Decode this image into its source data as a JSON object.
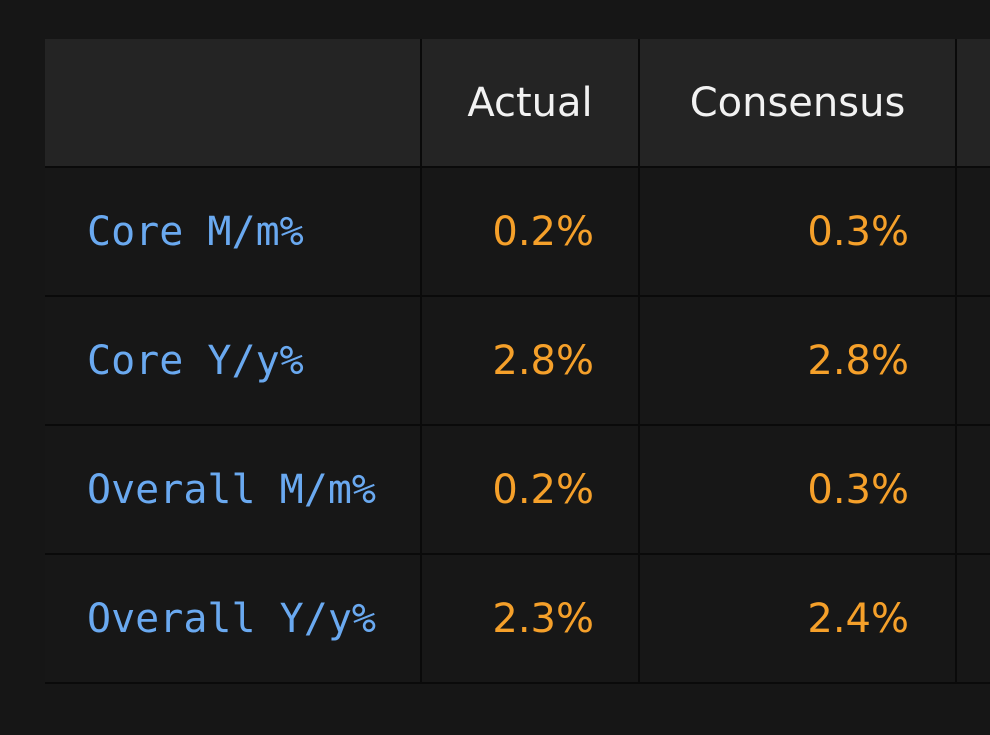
{
  "table": {
    "headers": {
      "label": "",
      "actual": "Actual",
      "consensus": "Consensus",
      "extra": ""
    },
    "rows": [
      {
        "label": "Core M/m%",
        "actual": "0.2%",
        "consensus": "0.3%"
      },
      {
        "label": "Core Y/y%",
        "actual": "2.8%",
        "consensus": "2.8%"
      },
      {
        "label": "Overall M/m%",
        "actual": "0.2%",
        "consensus": "0.3%"
      },
      {
        "label": "Overall Y/y%",
        "actual": "2.3%",
        "consensus": "2.4%"
      }
    ]
  },
  "colors": {
    "background": "#161616",
    "header_bg": "#242424",
    "label_text": "#6aa9f0",
    "value_text": "#f5a02a"
  }
}
